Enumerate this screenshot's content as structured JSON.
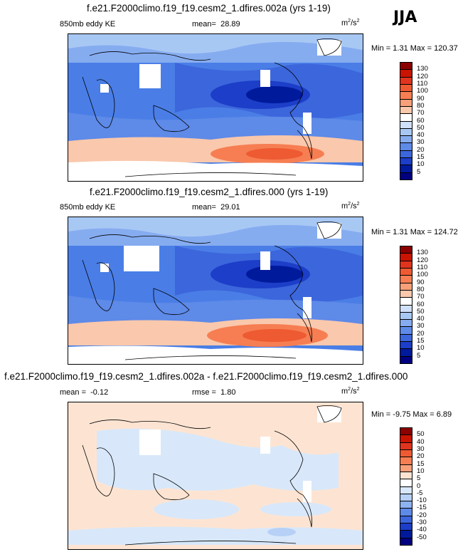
{
  "season": "JJA",
  "chart_data": [
    {
      "type": "heatmap",
      "title": "f.e21.F2000climo.f19_f19.cesm2_1.dfires.002a (yrs 1-19)",
      "variable": "850mb eddy KE",
      "mean_label": "mean=",
      "mean": "28.89",
      "units": "m²/s²",
      "min_label": "Min =",
      "min": "1.31",
      "max_label": "Max =",
      "max": "120.37",
      "levels": [
        "130",
        "120",
        "110",
        "100",
        "90",
        "80",
        "70",
        "60",
        "50",
        "40",
        "30",
        "20",
        "15",
        "10",
        "5"
      ],
      "colors": [
        "#8b0000",
        "#c81400",
        "#e0341e",
        "#ee5a32",
        "#f67e52",
        "#f8a07a",
        "#fac8ac",
        "#ffffff",
        "#cfe0f8",
        "#a8c8f4",
        "#86acf0",
        "#5e8ae8",
        "#3c66dc",
        "#1c3ec8",
        "#001a9c",
        "#000080"
      ]
    },
    {
      "type": "heatmap",
      "title": "f.e21.F2000climo.f19_f19.cesm2_1.dfires.000 (yrs 1-19)",
      "variable": "850mb eddy KE",
      "mean_label": "mean=",
      "mean": "29.01",
      "units": "m²/s²",
      "min_label": "Min =",
      "min": "1.31",
      "max_label": "Max =",
      "max": "124.72",
      "levels": [
        "130",
        "120",
        "110",
        "100",
        "90",
        "80",
        "70",
        "60",
        "50",
        "40",
        "30",
        "20",
        "15",
        "10",
        "5"
      ],
      "colors": [
        "#8b0000",
        "#c81400",
        "#e0341e",
        "#ee5a32",
        "#f67e52",
        "#f8a07a",
        "#fac8ac",
        "#ffffff",
        "#cfe0f8",
        "#a8c8f4",
        "#86acf0",
        "#5e8ae8",
        "#3c66dc",
        "#1c3ec8",
        "#001a9c",
        "#000080"
      ]
    },
    {
      "type": "heatmap",
      "title": "f.e21.F2000climo.f19_f19.cesm2_1.dfires.002a - f.e21.F2000climo.f19_f19.cesm2_1.dfires.000",
      "mean_label": "mean =",
      "mean": "-0.12",
      "rmse_label": "rmse =",
      "rmse": "1.80",
      "units": "m²/s²",
      "min_label": "Min =",
      "min": "-9.75",
      "max_label": "Max =",
      "max": "6.89",
      "levels": [
        "50",
        "40",
        "30",
        "20",
        "15",
        "10",
        "5",
        "0",
        "-5",
        "-10",
        "-15",
        "-20",
        "-30",
        "-40",
        "-50"
      ],
      "colors": [
        "#8b0000",
        "#c81400",
        "#e0341e",
        "#ee5a32",
        "#f67e52",
        "#f8a07a",
        "#fde4d2",
        "#ffffff",
        "#d8e8fa",
        "#b6d0f6",
        "#8cb2f0",
        "#5e8ae8",
        "#3c66dc",
        "#1c3ec8",
        "#001a9c",
        "#000080"
      ]
    }
  ]
}
